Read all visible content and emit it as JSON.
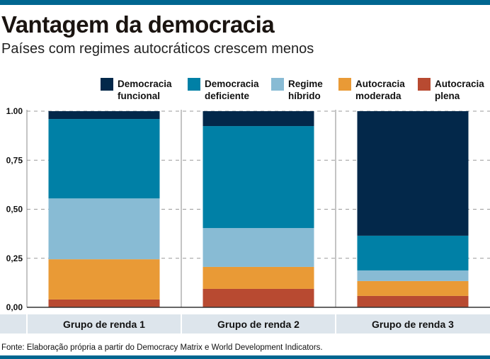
{
  "header": {
    "title": "Vantagem da democracia",
    "subtitle": "Países com regimes autocráticos crescem menos"
  },
  "source": "Fonte: Elaboração própria a partir do Democracy Matrix e World Development Indicators.",
  "colors": {
    "frame": "#006690",
    "category_band": "#dde5ec"
  },
  "chart_data": {
    "type": "bar",
    "stacked": true,
    "categories": [
      "Grupo de renda 1",
      "Grupo de renda 2",
      "Grupo de renda 3"
    ],
    "series": [
      {
        "name": [
          "Autocracia",
          "plena"
        ],
        "color": "#b84a31",
        "values": [
          0.04,
          0.094,
          0.058
        ]
      },
      {
        "name": [
          "Autocracia",
          "moderada"
        ],
        "color": "#e99a36",
        "values": [
          0.205,
          0.112,
          0.076
        ]
      },
      {
        "name": [
          "Regime",
          "híbrido"
        ],
        "color": "#88bbd4",
        "values": [
          0.31,
          0.198,
          0.054
        ]
      },
      {
        "name": [
          "Democracia",
          "deficiente"
        ],
        "color": "#0080a6",
        "values": [
          0.405,
          0.52,
          0.177
        ]
      },
      {
        "name": [
          "Democracia",
          "funcional"
        ],
        "color": "#03284a",
        "values": [
          0.04,
          0.076,
          0.635
        ]
      }
    ],
    "legend_order": [
      4,
      3,
      2,
      1,
      0
    ],
    "legend_placement": "top-right",
    "yticks": [
      "0,00",
      "0,25",
      "0,50",
      "0,75",
      "1.00"
    ],
    "ytick_values": [
      0,
      0.25,
      0.5,
      0.75,
      1.0
    ],
    "ylim": [
      0,
      1
    ],
    "grid": true
  }
}
